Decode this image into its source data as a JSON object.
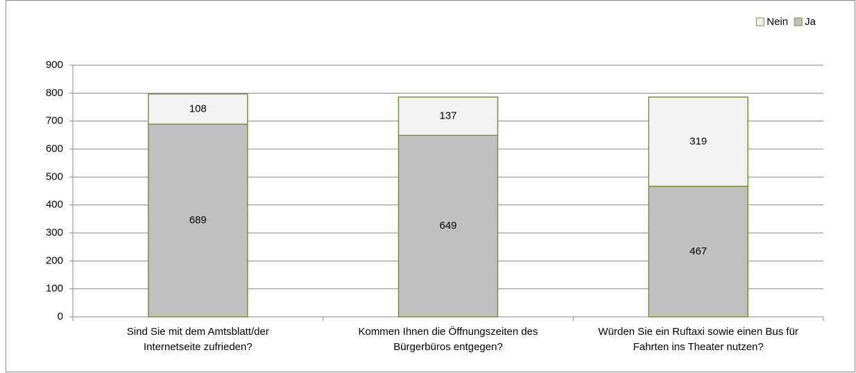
{
  "chart_data": {
    "type": "stacked_bar",
    "categories": [
      [
        "Sind Sie mit dem Amtsblatt/der",
        "Internetseite zufrieden?"
      ],
      [
        "Kommen Ihnen die Öffnungszeiten des",
        "Bürgerbüros entgegen?"
      ],
      [
        "Würden Sie ein Ruftaxi sowie einen Bus für",
        "Fahrten ins Theater nutzen?"
      ]
    ],
    "series": [
      {
        "name": "Ja",
        "color": "#bfbfbf",
        "values": [
          689,
          649,
          467
        ]
      },
      {
        "name": "Nein",
        "color": "#f2f2f2",
        "values": [
          108,
          137,
          319
        ]
      }
    ],
    "edge_color": "#77933c",
    "ylim": [
      0,
      900
    ],
    "yticks": [
      0,
      100,
      200,
      300,
      400,
      500,
      600,
      700,
      800,
      900
    ],
    "grid": true,
    "legend": "top-right"
  }
}
